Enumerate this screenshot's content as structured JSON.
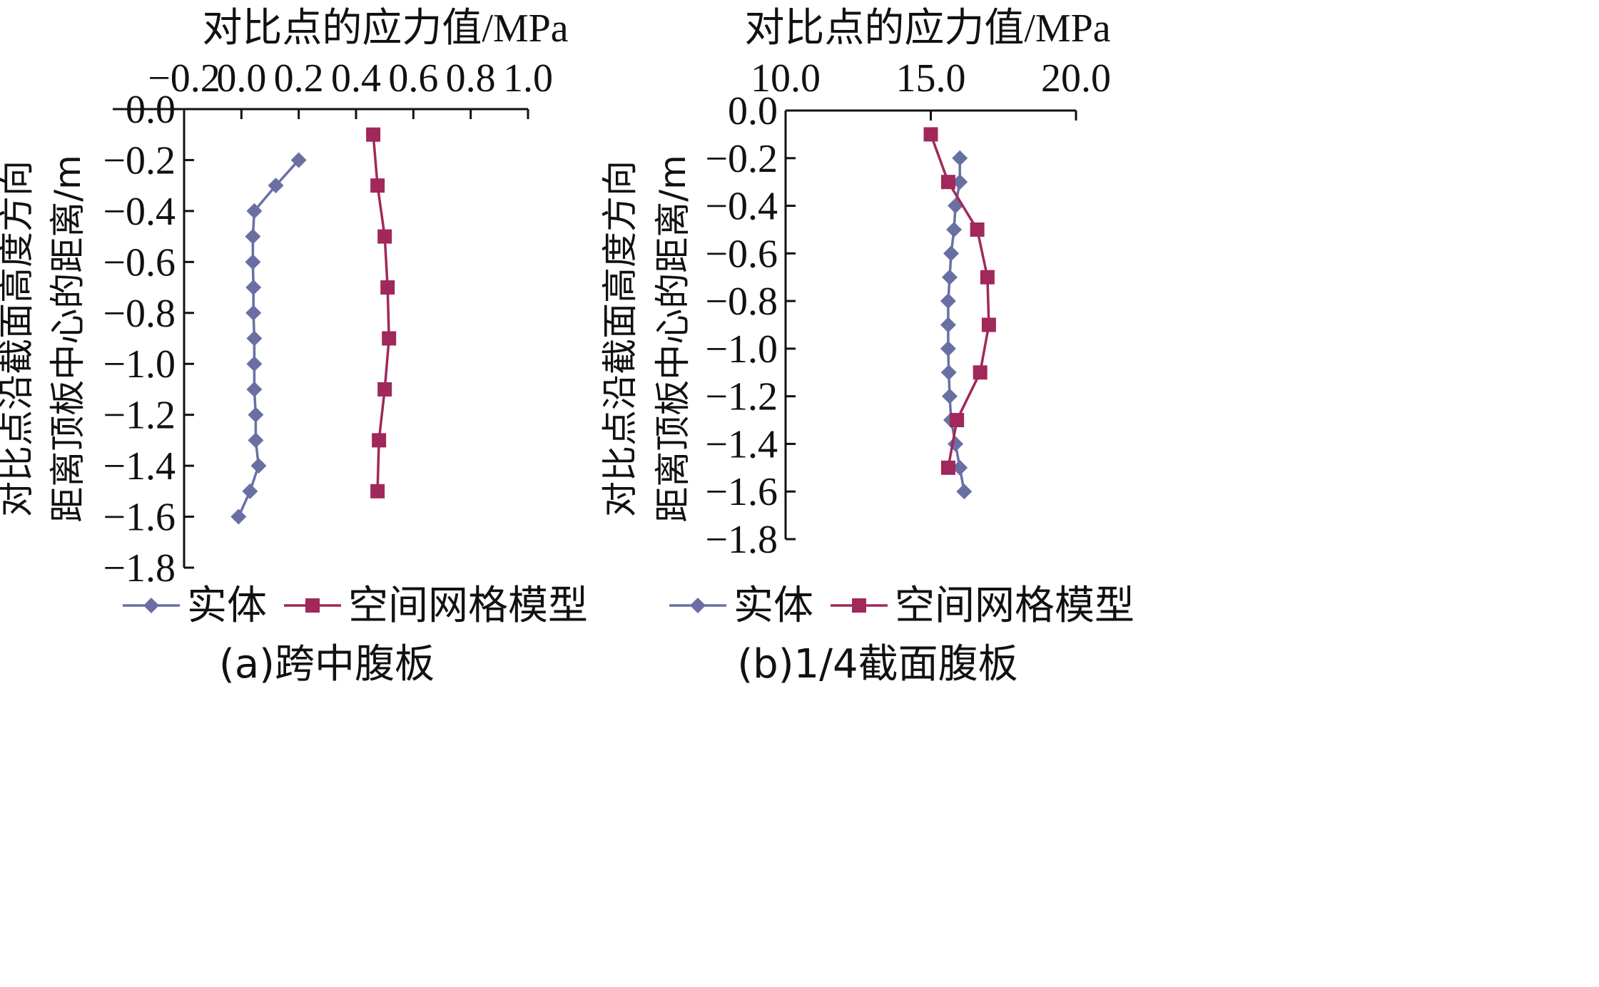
{
  "chart_data": [
    {
      "type": "line",
      "title": "",
      "xlabel": "对比点的应力值/MPa",
      "ylabel_lines": [
        "对比点沿截面高度方向",
        "距离顶板中心的距离/m"
      ],
      "caption": "(a)跨中腹板",
      "x_axis_position": "top",
      "xlim": [
        -0.2,
        1.0
      ],
      "ylim": [
        -1.8,
        0.0
      ],
      "xticks": [
        -0.2,
        0.0,
        0.2,
        0.4,
        0.6,
        0.8,
        1.0
      ],
      "xtick_labels": [
        "−0.2",
        "0.0",
        "0.2",
        "0.4",
        "0.6",
        "0.8",
        "1.0"
      ],
      "yticks": [
        0.0,
        -0.2,
        -0.4,
        -0.6,
        -0.8,
        -1.0,
        -1.2,
        -1.4,
        -1.6,
        -1.8
      ],
      "ytick_labels": [
        "0.0",
        "−0.2",
        "−0.4",
        "−0.6",
        "−0.8",
        "−1.0",
        "−1.2",
        "−1.4",
        "−1.6",
        "−1.8"
      ],
      "grid": false,
      "legend_position": "bottom",
      "series": [
        {
          "name": "实体",
          "marker": "diamond",
          "color": "#6a6fa3",
          "points": [
            {
              "x": 0.2,
              "y": -0.2
            },
            {
              "x": 0.12,
              "y": -0.3
            },
            {
              "x": 0.045,
              "y": -0.4
            },
            {
              "x": 0.04,
              "y": -0.5
            },
            {
              "x": 0.04,
              "y": -0.6
            },
            {
              "x": 0.042,
              "y": -0.7
            },
            {
              "x": 0.042,
              "y": -0.8
            },
            {
              "x": 0.045,
              "y": -0.9
            },
            {
              "x": 0.045,
              "y": -1.0
            },
            {
              "x": 0.045,
              "y": -1.1
            },
            {
              "x": 0.05,
              "y": -1.2
            },
            {
              "x": 0.05,
              "y": -1.3
            },
            {
              "x": 0.06,
              "y": -1.4
            },
            {
              "x": 0.03,
              "y": -1.5
            },
            {
              "x": -0.01,
              "y": -1.6
            }
          ]
        },
        {
          "name": "空间网格模型",
          "marker": "square",
          "color": "#a0285a",
          "points": [
            {
              "x": 0.46,
              "y": -0.1
            },
            {
              "x": 0.475,
              "y": -0.3
            },
            {
              "x": 0.5,
              "y": -0.5
            },
            {
              "x": 0.51,
              "y": -0.7
            },
            {
              "x": 0.515,
              "y": -0.9
            },
            {
              "x": 0.5,
              "y": -1.1
            },
            {
              "x": 0.48,
              "y": -1.3
            },
            {
              "x": 0.475,
              "y": -1.5
            }
          ]
        }
      ]
    },
    {
      "type": "line",
      "title": "",
      "xlabel": "对比点的应力值/MPa",
      "ylabel_lines": [
        "对比点沿截面高度方向",
        "距离顶板中心的距离/m"
      ],
      "caption": "(b)1/4截面腹板",
      "x_axis_position": "top",
      "xlim": [
        10.0,
        20.0
      ],
      "ylim": [
        -1.8,
        0.0
      ],
      "xticks": [
        10.0,
        15.0,
        20.0
      ],
      "xtick_labels": [
        "10.0",
        "15.0",
        "20.0"
      ],
      "yticks": [
        0.0,
        -0.2,
        -0.4,
        -0.6,
        -0.8,
        -1.0,
        -1.2,
        -1.4,
        -1.6,
        -1.8
      ],
      "ytick_labels": [
        "0.0",
        "−0.2",
        "−0.4",
        "−0.6",
        "−0.8",
        "−1.0",
        "−1.2",
        "−1.4",
        "−1.6",
        "−1.8"
      ],
      "grid": false,
      "legend_position": "bottom",
      "series": [
        {
          "name": "实体",
          "marker": "diamond",
          "color": "#6a6fa3",
          "points": [
            {
              "x": 16.0,
              "y": -0.2
            },
            {
              "x": 16.0,
              "y": -0.3
            },
            {
              "x": 15.85,
              "y": -0.4
            },
            {
              "x": 15.8,
              "y": -0.5
            },
            {
              "x": 15.7,
              "y": -0.6
            },
            {
              "x": 15.65,
              "y": -0.7
            },
            {
              "x": 15.6,
              "y": -0.8
            },
            {
              "x": 15.6,
              "y": -0.9
            },
            {
              "x": 15.6,
              "y": -1.0
            },
            {
              "x": 15.62,
              "y": -1.1
            },
            {
              "x": 15.65,
              "y": -1.2
            },
            {
              "x": 15.7,
              "y": -1.3
            },
            {
              "x": 15.85,
              "y": -1.4
            },
            {
              "x": 16.0,
              "y": -1.5
            },
            {
              "x": 16.15,
              "y": -1.6
            }
          ]
        },
        {
          "name": "空间网格模型",
          "marker": "square",
          "color": "#a0285a",
          "points": [
            {
              "x": 15.0,
              "y": -0.1
            },
            {
              "x": 15.6,
              "y": -0.3
            },
            {
              "x": 16.6,
              "y": -0.5
            },
            {
              "x": 16.95,
              "y": -0.7
            },
            {
              "x": 17.0,
              "y": -0.9
            },
            {
              "x": 16.7,
              "y": -1.1
            },
            {
              "x": 15.9,
              "y": -1.3
            },
            {
              "x": 15.6,
              "y": -1.5
            }
          ]
        }
      ]
    }
  ]
}
